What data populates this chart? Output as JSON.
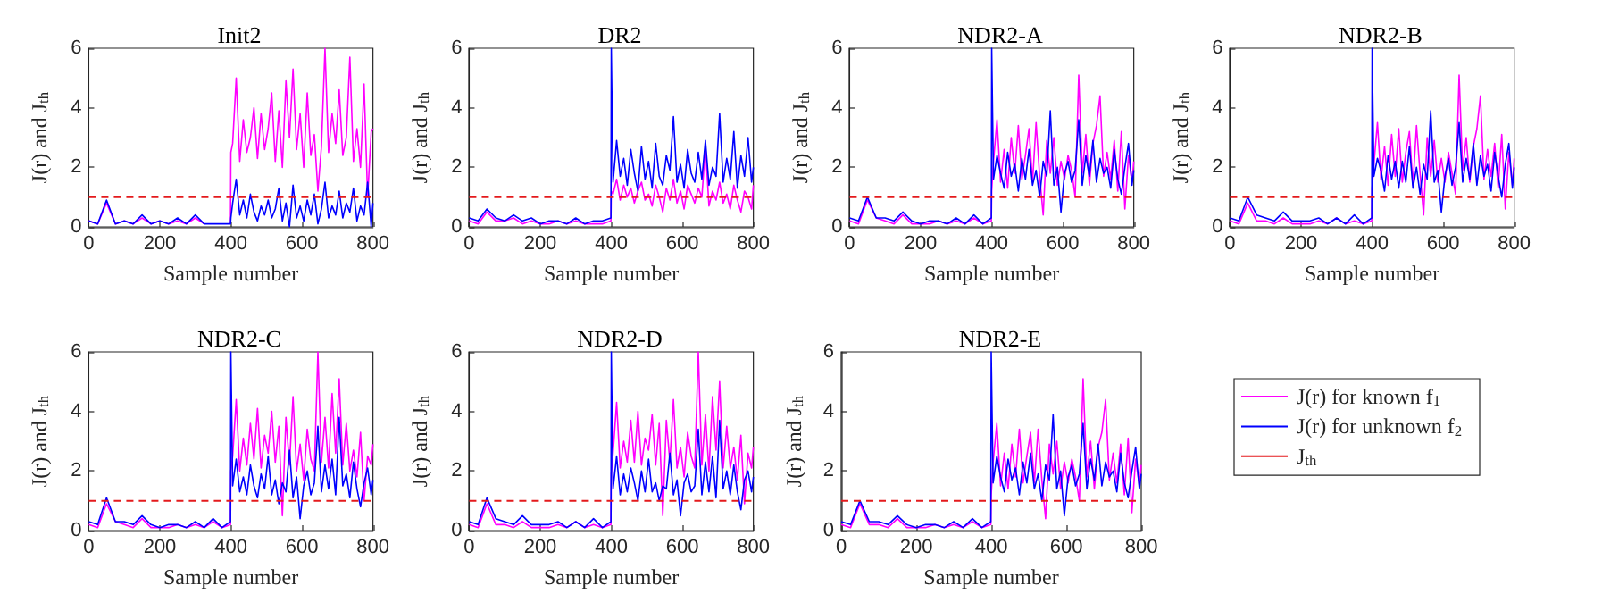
{
  "chart_data": [
    {
      "type": "line",
      "title": "Init2",
      "xlabel": "Sample number",
      "ylabel": "J(r) and J$_{th}$",
      "xlim": [
        0,
        800
      ],
      "xticks": [
        0,
        200,
        400,
        600,
        800
      ],
      "ylim": [
        0,
        6
      ],
      "yticks": [
        0,
        2,
        4,
        6
      ],
      "x": [
        0,
        25,
        50,
        75,
        100,
        125,
        150,
        175,
        200,
        225,
        250,
        275,
        300,
        325,
        350,
        375,
        399,
        400,
        405,
        415,
        425,
        435,
        445,
        455,
        465,
        475,
        485,
        495,
        505,
        515,
        525,
        535,
        545,
        555,
        565,
        575,
        585,
        595,
        605,
        615,
        625,
        635,
        645,
        655,
        665,
        675,
        685,
        695,
        705,
        715,
        725,
        735,
        745,
        755,
        765,
        775,
        785,
        795,
        800
      ],
      "ref_lines": [
        {
          "axis": "y",
          "value": 1,
          "color": "#e41a1c",
          "line_style": "dashed"
        }
      ],
      "series": [
        {
          "color": "#ff00ff",
          "values": [
            0.2,
            0.1,
            0.8,
            0.1,
            0.2,
            0.1,
            0.3,
            0.1,
            0.2,
            0.1,
            0.2,
            0.1,
            0.3,
            0.1,
            null,
            null,
            0.1,
            2.5,
            2.8,
            5.0,
            2.2,
            3.6,
            2.5,
            3.0,
            4.0,
            2.3,
            3.8,
            2.6,
            3.3,
            4.5,
            2.2,
            3.9,
            2.0,
            4.9,
            3.0,
            5.3,
            2.6,
            3.8,
            2.0,
            4.5,
            2.4,
            3.1,
            1.2,
            2.7,
            6.0,
            2.5,
            3.8,
            2.8,
            4.6,
            2.4,
            3.0,
            5.7,
            2.2,
            3.3,
            2.0,
            4.8,
            1.0,
            3.2,
            3.3
          ]
        },
        {
          "color": "#0000ff",
          "values": [
            0.2,
            0.1,
            0.9,
            0.1,
            0.2,
            0.1,
            0.4,
            0.1,
            0.2,
            0.1,
            0.3,
            0.1,
            0.4,
            0.1,
            0.1,
            0.1,
            0.1,
            0.3,
            0.8,
            1.6,
            0.4,
            0.9,
            0.3,
            1.1,
            0.5,
            0.2,
            0.7,
            0.4,
            0.9,
            0.3,
            0.6,
            1.3,
            0.2,
            0.8,
            0.0,
            1.4,
            0.3,
            0.7,
            0.2,
            0.9,
            0.4,
            1.1,
            0.1,
            0.6,
            1.5,
            0.3,
            0.7,
            0.4,
            1.2,
            0.3,
            0.8,
            0.5,
            1.3,
            0.2,
            0.7,
            0.4,
            1.5,
            0.0,
            0.8
          ]
        }
      ]
    },
    {
      "type": "line",
      "title": "DR2",
      "xlabel": "Sample number",
      "ylabel": "J(r) and J$_{th}$",
      "xlim": [
        0,
        800
      ],
      "xticks": [
        0,
        200,
        400,
        600,
        800
      ],
      "ylim": [
        0,
        6
      ],
      "yticks": [
        0,
        2,
        4,
        6
      ],
      "x": [
        0,
        25,
        50,
        75,
        100,
        125,
        150,
        175,
        200,
        225,
        250,
        275,
        300,
        325,
        350,
        375,
        399,
        400,
        405,
        415,
        425,
        435,
        445,
        455,
        465,
        475,
        485,
        495,
        505,
        515,
        525,
        535,
        545,
        555,
        565,
        575,
        585,
        595,
        605,
        615,
        625,
        635,
        645,
        655,
        665,
        675,
        685,
        695,
        705,
        715,
        725,
        735,
        745,
        755,
        765,
        775,
        785,
        795,
        800
      ],
      "ref_lines": [
        {
          "axis": "y",
          "value": 1,
          "color": "#e41a1c",
          "line_style": "dashed"
        }
      ],
      "series": [
        {
          "color": "#ff00ff",
          "values": [
            0.2,
            0.1,
            0.5,
            0.2,
            0.2,
            0.3,
            0.1,
            0.2,
            0.1,
            0.1,
            0.2,
            0.1,
            0.2,
            0.1,
            0.1,
            0.1,
            0.2,
            1.2,
            1.1,
            1.6,
            0.9,
            1.4,
            1.0,
            1.3,
            0.8,
            1.2,
            1.5,
            0.9,
            1.1,
            0.7,
            1.4,
            1.0,
            0.5,
            1.3,
            0.9,
            1.6,
            0.8,
            1.2,
            0.6,
            1.4,
            1.1,
            0.8,
            1.3,
            1.0,
            2.7,
            0.7,
            1.2,
            0.9,
            1.5,
            0.8,
            1.1,
            0.6,
            1.4,
            0.9,
            0.5,
            1.2,
            1.0,
            0.6,
            1.4
          ]
        },
        {
          "color": "#0000ff",
          "values": [
            0.3,
            0.2,
            0.6,
            0.3,
            0.2,
            0.4,
            0.2,
            0.3,
            0.1,
            0.2,
            0.2,
            0.1,
            0.3,
            0.1,
            0.2,
            0.2,
            0.3,
            6.0,
            1.5,
            2.9,
            1.7,
            2.3,
            1.4,
            2.6,
            1.8,
            1.2,
            2.7,
            1.6,
            2.2,
            1.3,
            2.8,
            1.7,
            1.4,
            2.4,
            1.9,
            3.7,
            1.5,
            2.1,
            1.3,
            2.6,
            1.8,
            1.5,
            2.5,
            1.6,
            2.9,
            1.4,
            2.0,
            1.7,
            3.8,
            1.5,
            2.3,
            1.6,
            3.2,
            1.3,
            2.4,
            1.7,
            3.0,
            1.5,
            2.0
          ]
        }
      ]
    },
    {
      "type": "line",
      "title": "NDR2-A",
      "xlabel": "Sample number",
      "ylabel": "J(r) and J$_{th}$",
      "xlim": [
        0,
        800
      ],
      "xticks": [
        0,
        200,
        400,
        600,
        800
      ],
      "ylim": [
        0,
        6
      ],
      "yticks": [
        0,
        2,
        4,
        6
      ],
      "x": [
        0,
        25,
        50,
        75,
        100,
        125,
        150,
        175,
        200,
        225,
        250,
        275,
        300,
        325,
        350,
        375,
        399,
        400,
        405,
        415,
        425,
        435,
        445,
        455,
        465,
        475,
        485,
        495,
        505,
        515,
        525,
        535,
        545,
        555,
        565,
        575,
        585,
        595,
        605,
        615,
        625,
        635,
        645,
        655,
        665,
        675,
        685,
        695,
        705,
        715,
        725,
        735,
        745,
        755,
        765,
        775,
        785,
        795,
        800
      ],
      "ref_lines": [
        {
          "axis": "y",
          "value": 1,
          "color": "#e41a1c",
          "line_style": "dashed"
        }
      ],
      "series": [
        {
          "color": "#ff00ff",
          "values": [
            0.2,
            0.1,
            0.9,
            0.3,
            0.2,
            0.1,
            0.4,
            0.1,
            0.1,
            0.1,
            0.2,
            0.1,
            0.2,
            0.1,
            0.3,
            0.1,
            0.2,
            1.2,
            2.2,
            3.6,
            1.5,
            2.6,
            1.3,
            3.0,
            1.8,
            3.4,
            1.6,
            2.4,
            3.3,
            1.5,
            3.5,
            1.7,
            0.4,
            2.9,
            1.8,
            3.0,
            1.4,
            2.2,
            1.6,
            2.4,
            1.9,
            1.0,
            5.1,
            1.8,
            3.1,
            1.4,
            2.8,
            3.4,
            4.4,
            1.7,
            2.5,
            1.6,
            2.9,
            1.2,
            3.2,
            0.6,
            2.4,
            1.5,
            2.2
          ]
        },
        {
          "color": "#0000ff",
          "values": [
            0.3,
            0.2,
            1.0,
            0.3,
            0.3,
            0.2,
            0.5,
            0.2,
            0.1,
            0.2,
            0.2,
            0.1,
            0.3,
            0.1,
            0.4,
            0.1,
            0.3,
            6.0,
            1.6,
            2.4,
            1.8,
            1.3,
            2.5,
            1.7,
            2.1,
            1.2,
            2.3,
            1.6,
            2.6,
            1.4,
            1.9,
            1.0,
            2.2,
            1.7,
            3.9,
            1.4,
            2.0,
            0.5,
            1.8,
            2.2,
            1.5,
            1.9,
            3.6,
            1.4,
            2.4,
            1.7,
            2.9,
            1.5,
            2.3,
            1.8,
            2.0,
            1.3,
            2.6,
            1.6,
            1.1,
            2.0,
            2.8,
            1.4,
            1.9
          ]
        }
      ]
    },
    {
      "type": "line",
      "title": "NDR2-B",
      "xlabel": "Sample number",
      "ylabel": "J(r) and J$_{th}$",
      "xlim": [
        0,
        800
      ],
      "xticks": [
        0,
        200,
        400,
        600,
        800
      ],
      "ylim": [
        0,
        6
      ],
      "yticks": [
        0,
        2,
        4,
        6
      ],
      "x": [
        0,
        25,
        50,
        75,
        100,
        125,
        150,
        175,
        200,
        225,
        250,
        275,
        300,
        325,
        350,
        375,
        399,
        400,
        405,
        415,
        425,
        435,
        445,
        455,
        465,
        475,
        485,
        495,
        505,
        515,
        525,
        535,
        545,
        555,
        565,
        575,
        585,
        595,
        605,
        615,
        625,
        635,
        645,
        655,
        665,
        675,
        685,
        695,
        705,
        715,
        725,
        735,
        745,
        755,
        765,
        775,
        785,
        795,
        800
      ],
      "ref_lines": [
        {
          "axis": "y",
          "value": 1,
          "color": "#e41a1c",
          "line_style": "dashed"
        }
      ],
      "series": [
        {
          "color": "#ff00ff",
          "values": [
            0.2,
            0.1,
            0.8,
            0.2,
            0.2,
            0.1,
            0.3,
            0.1,
            0.1,
            0.1,
            0.2,
            0.1,
            0.3,
            0.1,
            0.2,
            0.1,
            0.2,
            1.3,
            2.1,
            3.5,
            1.6,
            2.7,
            1.4,
            3.1,
            1.7,
            3.3,
            1.5,
            2.5,
            3.2,
            1.4,
            3.4,
            1.8,
            0.4,
            3.0,
            1.7,
            2.9,
            1.5,
            2.3,
            1.5,
            2.5,
            1.8,
            1.1,
            5.1,
            1.9,
            3.0,
            1.5,
            2.7,
            3.3,
            4.4,
            1.6,
            2.6,
            1.7,
            2.8,
            1.3,
            3.1,
            0.6,
            2.5,
            1.4,
            2.3
          ]
        },
        {
          "color": "#0000ff",
          "values": [
            0.3,
            0.2,
            1.0,
            0.4,
            0.3,
            0.2,
            0.5,
            0.2,
            0.2,
            0.2,
            0.3,
            0.1,
            0.3,
            0.1,
            0.4,
            0.1,
            0.3,
            6.0,
            1.7,
            2.3,
            1.9,
            1.2,
            2.4,
            1.6,
            2.2,
            1.3,
            2.2,
            1.5,
            2.7,
            1.3,
            2.0,
            1.1,
            2.1,
            1.6,
            3.9,
            1.5,
            1.9,
            0.5,
            1.7,
            2.3,
            1.4,
            2.0,
            3.5,
            1.5,
            2.3,
            1.6,
            2.8,
            1.4,
            2.4,
            1.7,
            2.1,
            1.2,
            2.5,
            1.7,
            1.0,
            2.1,
            2.8,
            1.3,
            2.0
          ]
        }
      ]
    },
    {
      "type": "line",
      "title": "NDR2-C",
      "xlabel": "Sample number",
      "ylabel": "J(r) and J$_{th}$",
      "xlim": [
        0,
        800
      ],
      "xticks": [
        0,
        200,
        400,
        600,
        800
      ],
      "ylim": [
        0,
        6
      ],
      "yticks": [
        0,
        2,
        4,
        6
      ],
      "x": [
        0,
        25,
        50,
        75,
        100,
        125,
        150,
        175,
        200,
        225,
        250,
        275,
        300,
        325,
        350,
        375,
        399,
        400,
        405,
        415,
        425,
        435,
        445,
        455,
        465,
        475,
        485,
        495,
        505,
        515,
        525,
        535,
        545,
        555,
        565,
        575,
        585,
        595,
        605,
        615,
        625,
        635,
        645,
        655,
        665,
        675,
        685,
        695,
        705,
        715,
        725,
        735,
        745,
        755,
        765,
        775,
        785,
        795,
        800
      ],
      "ref_lines": [
        {
          "axis": "y",
          "value": 1,
          "color": "#e41a1c",
          "line_style": "dashed"
        }
      ],
      "series": [
        {
          "color": "#ff00ff",
          "values": [
            0.2,
            0.1,
            0.9,
            0.3,
            0.2,
            0.1,
            0.4,
            0.1,
            0.1,
            0.1,
            0.2,
            0.1,
            0.2,
            0.1,
            0.3,
            0.1,
            0.2,
            2.0,
            2.5,
            4.4,
            2.0,
            3.1,
            2.2,
            3.6,
            2.4,
            4.1,
            2.1,
            3.2,
            2.6,
            4.0,
            2.3,
            3.5,
            0.5,
            3.8,
            2.2,
            4.5,
            2.0,
            2.9,
            1.7,
            3.4,
            2.4,
            2.0,
            6.0,
            2.3,
            3.8,
            2.1,
            4.6,
            2.6,
            5.1,
            2.2,
            3.6,
            2.0,
            2.7,
            1.8,
            3.3,
            1.0,
            2.5,
            2.2,
            2.9
          ]
        },
        {
          "color": "#0000ff",
          "values": [
            0.3,
            0.2,
            1.1,
            0.3,
            0.3,
            0.2,
            0.5,
            0.2,
            0.1,
            0.2,
            0.2,
            0.1,
            0.3,
            0.1,
            0.4,
            0.1,
            0.3,
            6.0,
            1.5,
            2.4,
            1.3,
            1.8,
            1.2,
            2.2,
            1.5,
            1.1,
            1.9,
            1.4,
            2.5,
            1.2,
            1.7,
            0.9,
            1.6,
            1.3,
            2.7,
            1.1,
            1.8,
            0.4,
            1.5,
            2.0,
            1.2,
            1.6,
            3.5,
            1.3,
            2.2,
            1.4,
            2.4,
            1.2,
            3.8,
            1.5,
            1.9,
            1.1,
            2.3,
            1.4,
            0.8,
            1.6,
            2.1,
            1.2,
            1.7
          ]
        }
      ]
    },
    {
      "type": "line",
      "title": "NDR2-D",
      "xlabel": "Sample number",
      "ylabel": "J(r) and J$_{th}$",
      "xlim": [
        0,
        800
      ],
      "xticks": [
        0,
        200,
        400,
        600,
        800
      ],
      "ylim": [
        0,
        6
      ],
      "yticks": [
        0,
        2,
        4,
        6
      ],
      "x": [
        0,
        25,
        50,
        75,
        100,
        125,
        150,
        175,
        200,
        225,
        250,
        275,
        300,
        325,
        350,
        375,
        399,
        400,
        405,
        415,
        425,
        435,
        445,
        455,
        465,
        475,
        485,
        495,
        505,
        515,
        525,
        535,
        545,
        555,
        565,
        575,
        585,
        595,
        605,
        615,
        625,
        635,
        645,
        655,
        665,
        675,
        685,
        695,
        705,
        715,
        725,
        735,
        745,
        755,
        765,
        775,
        785,
        795,
        800
      ],
      "ref_lines": [
        {
          "axis": "y",
          "value": 1,
          "color": "#e41a1c",
          "line_style": "dashed"
        }
      ],
      "series": [
        {
          "color": "#ff00ff",
          "values": [
            0.2,
            0.1,
            0.9,
            0.2,
            0.2,
            0.1,
            0.3,
            0.1,
            0.1,
            0.1,
            0.2,
            0.1,
            0.3,
            0.1,
            0.2,
            0.1,
            0.2,
            1.9,
            2.6,
            4.3,
            2.1,
            3.0,
            2.3,
            3.7,
            2.3,
            4.0,
            2.2,
            3.1,
            2.7,
            3.9,
            2.2,
            3.6,
            0.5,
            3.7,
            2.3,
            4.4,
            2.1,
            2.8,
            1.8,
            3.3,
            2.5,
            2.1,
            6.0,
            2.2,
            3.9,
            2.0,
            4.5,
            2.7,
            5.0,
            2.1,
            3.5,
            2.1,
            2.8,
            1.7,
            3.2,
            0.9,
            2.6,
            2.1,
            2.8
          ]
        },
        {
          "color": "#0000ff",
          "values": [
            0.3,
            0.2,
            1.1,
            0.4,
            0.3,
            0.2,
            0.5,
            0.2,
            0.2,
            0.2,
            0.3,
            0.1,
            0.3,
            0.1,
            0.4,
            0.1,
            0.3,
            6.0,
            1.4,
            2.5,
            1.2,
            1.9,
            1.3,
            2.1,
            1.6,
            1.0,
            2.0,
            1.3,
            2.4,
            1.3,
            1.6,
            1.0,
            1.5,
            1.4,
            2.6,
            1.2,
            1.7,
            0.5,
            1.6,
            1.9,
            1.3,
            1.5,
            3.4,
            1.2,
            2.3,
            1.3,
            2.5,
            1.1,
            3.7,
            1.4,
            2.0,
            1.2,
            2.2,
            1.3,
            0.7,
            1.7,
            2.0,
            1.3,
            1.8
          ]
        }
      ]
    },
    {
      "type": "line",
      "title": "NDR2-E",
      "xlabel": "Sample number",
      "ylabel": "J(r) and J$_{th}$",
      "xlim": [
        0,
        800
      ],
      "xticks": [
        0,
        200,
        400,
        600,
        800
      ],
      "ylim": [
        0,
        6
      ],
      "yticks": [
        0,
        2,
        4,
        6
      ],
      "legend": "right",
      "x": [
        0,
        25,
        50,
        75,
        100,
        125,
        150,
        175,
        200,
        225,
        250,
        275,
        300,
        325,
        350,
        375,
        399,
        400,
        405,
        415,
        425,
        435,
        445,
        455,
        465,
        475,
        485,
        495,
        505,
        515,
        525,
        535,
        545,
        555,
        565,
        575,
        585,
        595,
        605,
        615,
        625,
        635,
        645,
        655,
        665,
        675,
        685,
        695,
        705,
        715,
        725,
        735,
        745,
        755,
        765,
        775,
        785,
        795,
        800
      ],
      "ref_lines": [
        {
          "axis": "y",
          "value": 1,
          "label": "J$_{th}$",
          "color": "#e41a1c",
          "line_style": "dashed"
        }
      ],
      "series": [
        {
          "name": "J(r) for known f$_{1}$",
          "color": "#ff00ff",
          "values": [
            0.2,
            0.1,
            0.9,
            0.2,
            0.2,
            0.1,
            0.4,
            0.1,
            0.1,
            0.1,
            0.2,
            0.1,
            0.2,
            0.1,
            0.3,
            0.1,
            0.2,
            1.2,
            2.3,
            3.6,
            1.5,
            2.6,
            1.4,
            2.9,
            1.8,
            3.4,
            1.6,
            2.5,
            3.3,
            1.6,
            3.4,
            1.7,
            0.4,
            2.9,
            1.9,
            3.0,
            1.4,
            2.3,
            1.6,
            2.4,
            1.8,
            1.0,
            5.1,
            1.8,
            3.0,
            1.4,
            2.8,
            3.3,
            4.4,
            1.7,
            2.6,
            1.6,
            2.9,
            1.2,
            3.1,
            0.6,
            2.4,
            1.5,
            2.2
          ]
        },
        {
          "name": "J(r) for unknown f$_{2}$",
          "color": "#0000ff",
          "values": [
            0.3,
            0.2,
            1.0,
            0.3,
            0.3,
            0.2,
            0.5,
            0.2,
            0.1,
            0.2,
            0.2,
            0.1,
            0.3,
            0.1,
            0.4,
            0.1,
            0.3,
            6.0,
            1.6,
            2.5,
            1.8,
            1.3,
            2.4,
            1.7,
            2.1,
            1.2,
            2.3,
            1.6,
            2.6,
            1.4,
            1.9,
            1.0,
            2.2,
            1.7,
            3.9,
            1.4,
            2.0,
            0.5,
            1.8,
            2.2,
            1.5,
            1.9,
            3.6,
            1.4,
            2.4,
            1.7,
            2.9,
            1.5,
            2.3,
            1.8,
            2.0,
            1.3,
            2.6,
            1.6,
            1.1,
            2.0,
            2.8,
            1.4,
            1.9
          ]
        }
      ]
    }
  ]
}
